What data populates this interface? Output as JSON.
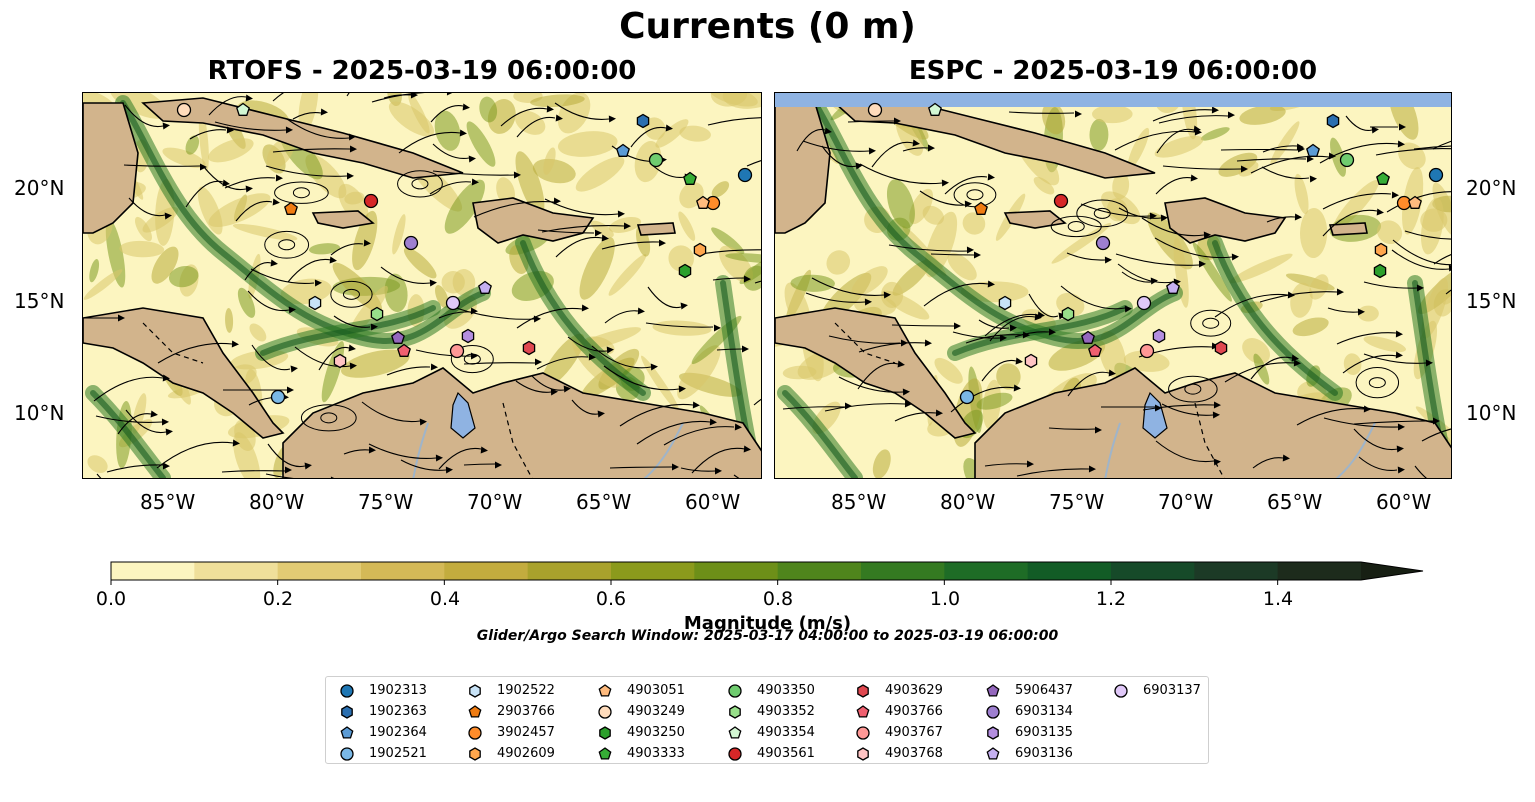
{
  "figure": {
    "title": "Currents (0 m)",
    "panels": [
      {
        "title": "RTOFS - 2025-03-19 06:00:00"
      },
      {
        "title": "ESPC - 2025-03-19 06:00:00"
      }
    ],
    "lat_ticks": [
      "20°N",
      "15°N",
      "10°N"
    ],
    "lon_ticks": [
      "85°W",
      "80°W",
      "75°W",
      "70°W",
      "65°W",
      "60°W"
    ],
    "colorbar": {
      "label": "Magnitude (m/s)",
      "ticks": [
        "0.0",
        "0.2",
        "0.4",
        "0.6",
        "0.8",
        "1.0",
        "1.2",
        "1.4"
      ],
      "colors": [
        "#fcf5c0",
        "#efdf9a",
        "#e2cb74",
        "#d4b957",
        "#c3ac3e",
        "#a9a22c",
        "#8b9a1c",
        "#6d8f18",
        "#4f851c",
        "#347a21",
        "#1e6c26",
        "#125c26",
        "#164a29",
        "#1c3a26",
        "#1d2b1c",
        "#171f13"
      ]
    },
    "search_window": "Glider/Argo Search Window: 2025-03-17 04:00:00 to 2025-03-19 06:00:00",
    "legend": [
      {
        "id": "1902313",
        "marker": "circle",
        "color": "#1f77b4"
      },
      {
        "id": "1902363",
        "marker": "hexagon",
        "color": "#2b6fb0"
      },
      {
        "id": "1902364",
        "marker": "pentagon",
        "color": "#5b9bd5"
      },
      {
        "id": "1902521",
        "marker": "circle",
        "color": "#7ab8e6"
      },
      {
        "id": "1902522",
        "marker": "hexagon",
        "color": "#c8e3f7"
      },
      {
        "id": "2903766",
        "marker": "pentagon",
        "color": "#f07c12"
      },
      {
        "id": "3902457",
        "marker": "circle",
        "color": "#ff8c2a"
      },
      {
        "id": "4902609",
        "marker": "hexagon",
        "color": "#ffa64d"
      },
      {
        "id": "4903051",
        "marker": "pentagon",
        "color": "#ffbb7e"
      },
      {
        "id": "4903249",
        "marker": "circle",
        "color": "#ffdcbc"
      },
      {
        "id": "4903250",
        "marker": "hexagon",
        "color": "#2ca02c"
      },
      {
        "id": "4903333",
        "marker": "pentagon",
        "color": "#36ad36"
      },
      {
        "id": "4903350",
        "marker": "circle",
        "color": "#6fcc6f"
      },
      {
        "id": "4903352",
        "marker": "hexagon",
        "color": "#98df8a"
      },
      {
        "id": "4903354",
        "marker": "pentagon",
        "color": "#d3f7d3"
      },
      {
        "id": "4903561",
        "marker": "circle",
        "color": "#d62728"
      },
      {
        "id": "4903629",
        "marker": "hexagon",
        "color": "#e04850"
      },
      {
        "id": "4903766",
        "marker": "pentagon",
        "color": "#f06070"
      },
      {
        "id": "4903767",
        "marker": "circle",
        "color": "#ff9896"
      },
      {
        "id": "4903768",
        "marker": "hexagon",
        "color": "#ffc4c4"
      },
      {
        "id": "5906437",
        "marker": "pentagon",
        "color": "#9467bd"
      },
      {
        "id": "6903134",
        "marker": "circle",
        "color": "#9e7fd0"
      },
      {
        "id": "6903135",
        "marker": "hexagon",
        "color": "#b48ee0"
      },
      {
        "id": "6903136",
        "marker": "pentagon",
        "color": "#c5b0f0"
      },
      {
        "id": "6903137",
        "marker": "circle",
        "color": "#e0c8f8"
      }
    ],
    "colors": {
      "land": "#d2b48c",
      "water_low": "#fcf5c0",
      "water_mid": "#d9c76a",
      "water_high": "#2e7a22",
      "lake": "#8fb3e2",
      "coast": "#000000"
    }
  }
}
